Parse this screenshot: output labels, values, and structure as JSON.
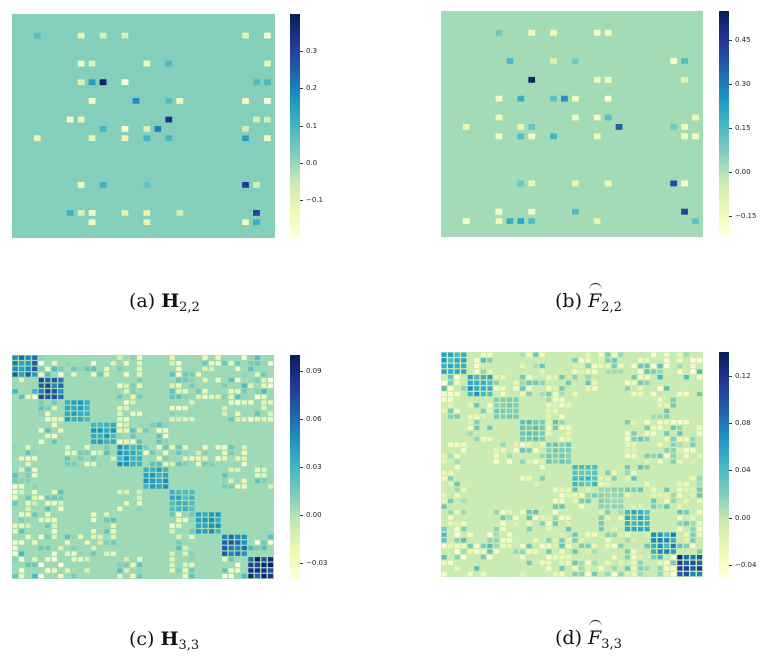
{
  "panels": [
    {
      "id": "a",
      "caption": {
        "prefix": "(a)",
        "symbol": "H",
        "subscript": "2,2"
      },
      "chart_data": {
        "type": "heatmap",
        "grid": 24,
        "vmin": -0.2,
        "vmax": 0.4,
        "background": 0.02,
        "cmap": "YlGnBu",
        "colorbar_ticks": [
          {
            "value": 0.3,
            "label": "0.3"
          },
          {
            "value": 0.2,
            "label": "0.2"
          },
          {
            "value": 0.1,
            "label": "0.1"
          },
          {
            "value": 0.0,
            "label": "0.0"
          },
          {
            "value": -0.1,
            "label": "−0.1"
          }
        ],
        "active_rows": [
          2,
          5,
          7,
          9,
          11,
          12,
          13,
          18,
          21,
          22
        ],
        "active_cols": [
          2,
          5,
          6,
          7,
          8,
          10,
          12,
          14,
          15,
          21,
          22,
          23
        ],
        "strong_cells": [
          [
            7,
            8,
            0.38
          ],
          [
            11,
            14,
            0.34
          ],
          [
            18,
            21,
            0.32
          ],
          [
            21,
            22,
            0.3
          ],
          [
            12,
            13,
            0.2
          ],
          [
            9,
            11,
            0.18
          ]
        ]
      }
    },
    {
      "id": "b",
      "caption": {
        "prefix": "(b)",
        "symbol": "F",
        "subscript": "2,2"
      },
      "chart_data": {
        "type": "heatmap",
        "grid": 24,
        "vmin": -0.22,
        "vmax": 0.55,
        "background": 0.02,
        "cmap": "YlGnBu",
        "colorbar_ticks": [
          {
            "value": 0.45,
            "label": "0.45"
          },
          {
            "value": 0.3,
            "label": "0.30"
          },
          {
            "value": 0.15,
            "label": "0.15"
          },
          {
            "value": 0.0,
            "label": "0.00"
          },
          {
            "value": -0.15,
            "label": "−0.15"
          }
        ],
        "active_rows": [
          2,
          5,
          7,
          9,
          11,
          12,
          13,
          18,
          21,
          22
        ],
        "active_cols": [
          2,
          5,
          6,
          7,
          8,
          10,
          12,
          14,
          15,
          21,
          22,
          23
        ],
        "strong_cells": [
          [
            7,
            8,
            0.52
          ],
          [
            12,
            16,
            0.36
          ],
          [
            18,
            21,
            0.4
          ],
          [
            21,
            22,
            0.42
          ],
          [
            9,
            11,
            0.25
          ]
        ]
      }
    },
    {
      "id": "c",
      "caption": {
        "prefix": "(c)",
        "symbol": "H",
        "subscript": "3,3"
      },
      "chart_data": {
        "type": "heatmap",
        "grid": 40,
        "block_size": 4,
        "vmin": -0.04,
        "vmax": 0.1,
        "background": 0.005,
        "cmap": "YlGnBu",
        "colorbar_ticks": [
          {
            "value": 0.09,
            "label": "0.09"
          },
          {
            "value": 0.06,
            "label": "0.06"
          },
          {
            "value": 0.03,
            "label": "0.03"
          },
          {
            "value": 0.0,
            "label": "0.00"
          },
          {
            "value": -0.03,
            "label": "−0.03"
          }
        ],
        "block_peak": [
          0.07,
          0.08,
          0.05,
          0.05,
          0.05,
          0.05,
          0.04,
          0.05,
          0.07,
          0.1
        ]
      }
    },
    {
      "id": "d",
      "caption": {
        "prefix": "(d)",
        "symbol": "F",
        "subscript": "3,3"
      },
      "chart_data": {
        "type": "heatmap",
        "grid": 40,
        "block_size": 4,
        "vmin": -0.05,
        "vmax": 0.14,
        "background": -0.005,
        "cmap": "YlGnBu",
        "colorbar_ticks": [
          {
            "value": 0.12,
            "label": "0.12"
          },
          {
            "value": 0.08,
            "label": "0.08"
          },
          {
            "value": 0.04,
            "label": "0.04"
          },
          {
            "value": 0.0,
            "label": "0.00"
          },
          {
            "value": -0.04,
            "label": "−0.04"
          }
        ],
        "block_peak": [
          0.07,
          0.07,
          0.03,
          0.04,
          0.03,
          0.05,
          0.02,
          0.06,
          0.08,
          0.13
        ]
      }
    }
  ]
}
